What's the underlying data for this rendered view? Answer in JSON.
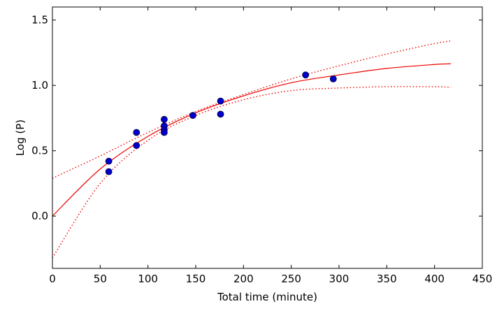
{
  "chart_data": {
    "type": "scatter",
    "xlabel": "Total time (minute)",
    "ylabel": "Log (P)",
    "xlim": [
      0,
      450
    ],
    "ylim": [
      -0.4,
      1.6
    ],
    "xticks": [
      0,
      50,
      100,
      150,
      200,
      250,
      300,
      350,
      400,
      450
    ],
    "yticks": [
      0.0,
      0.5,
      1.0,
      1.5
    ],
    "ytick_labels": [
      "0.0",
      "0.5",
      "1.0",
      "1.5"
    ],
    "grid": false,
    "points": {
      "color": "#0000cc",
      "x": [
        59,
        59,
        88,
        88,
        117,
        117,
        117,
        117,
        147,
        176,
        176,
        265,
        294
      ],
      "y": [
        0.42,
        0.34,
        0.64,
        0.54,
        0.74,
        0.69,
        0.66,
        0.64,
        0.77,
        0.88,
        0.78,
        1.08,
        1.05
      ]
    },
    "fit_curve": {
      "color": "#ee0000",
      "style": "solid",
      "x": [
        0,
        50,
        100,
        150,
        200,
        250,
        300,
        350,
        400,
        417
      ],
      "y": [
        0.0,
        0.36,
        0.61,
        0.79,
        0.92,
        1.02,
        1.08,
        1.13,
        1.16,
        1.165
      ]
    },
    "upper_band": {
      "color": "#ee0000",
      "style": "dotted",
      "x": [
        0,
        50,
        100,
        150,
        200,
        250,
        300,
        350,
        400,
        417
      ],
      "y": [
        0.29,
        0.46,
        0.64,
        0.8,
        0.93,
        1.05,
        1.15,
        1.24,
        1.32,
        1.34
      ]
    },
    "lower_band": {
      "color": "#ee0000",
      "style": "dotted",
      "x": [
        0,
        50,
        100,
        150,
        200,
        250,
        300,
        350,
        400,
        417
      ],
      "y": [
        -0.32,
        0.25,
        0.58,
        0.77,
        0.89,
        0.96,
        0.98,
        0.99,
        0.99,
        0.985
      ]
    }
  }
}
